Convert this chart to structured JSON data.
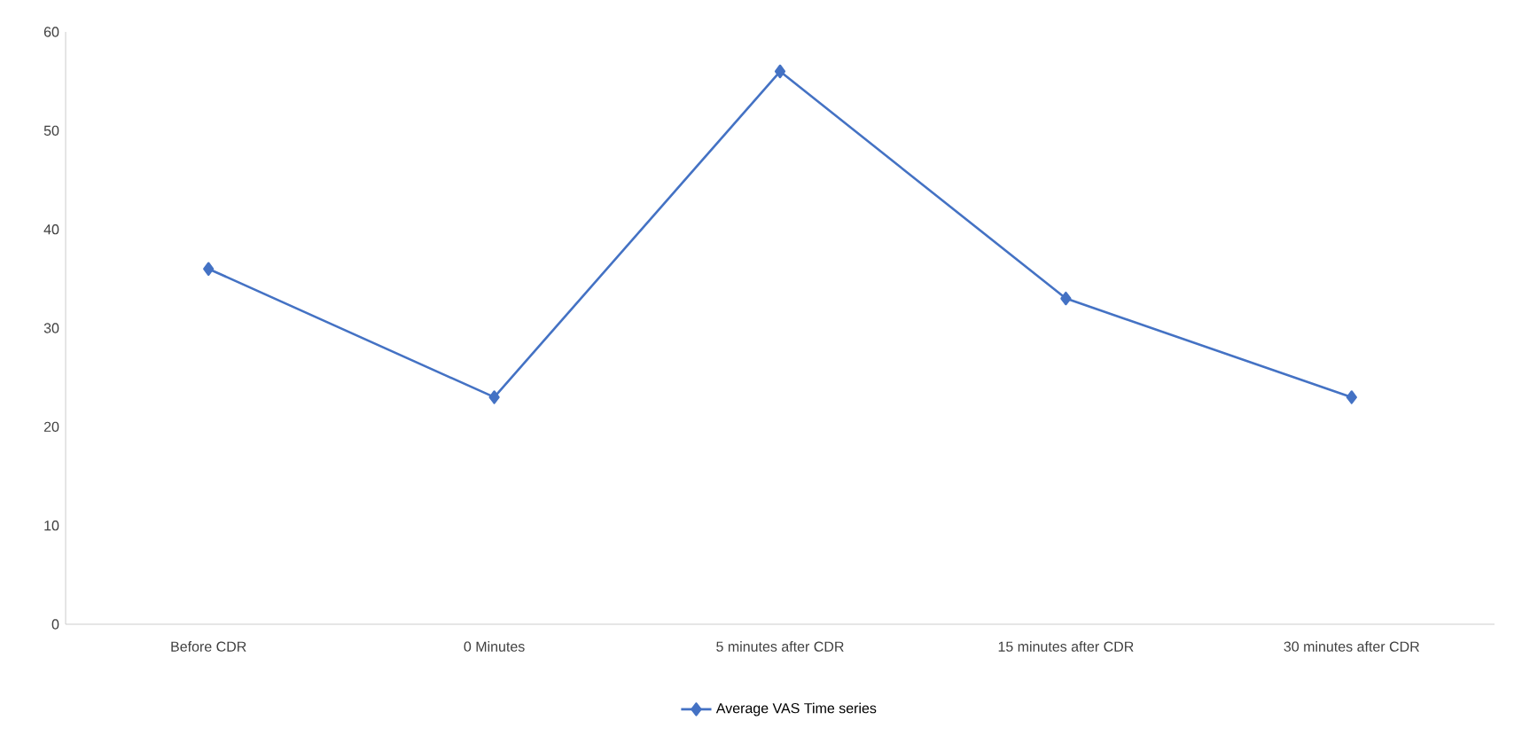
{
  "chart_data": {
    "type": "line",
    "categories": [
      "Before CDR",
      "0 Minutes",
      "5 minutes after CDR",
      "15 minutes after CDR",
      "30 minutes after CDR"
    ],
    "series": [
      {
        "name": "Average VAS Time series",
        "color": "#4472c4",
        "values": [
          36,
          23,
          56,
          33,
          23
        ]
      }
    ],
    "ylim": [
      0,
      60
    ],
    "yticks": [
      0,
      10,
      20,
      30,
      40,
      50,
      60
    ],
    "grid": false,
    "legend": "bottom",
    "marker": "diamond",
    "line_style": "solid"
  }
}
